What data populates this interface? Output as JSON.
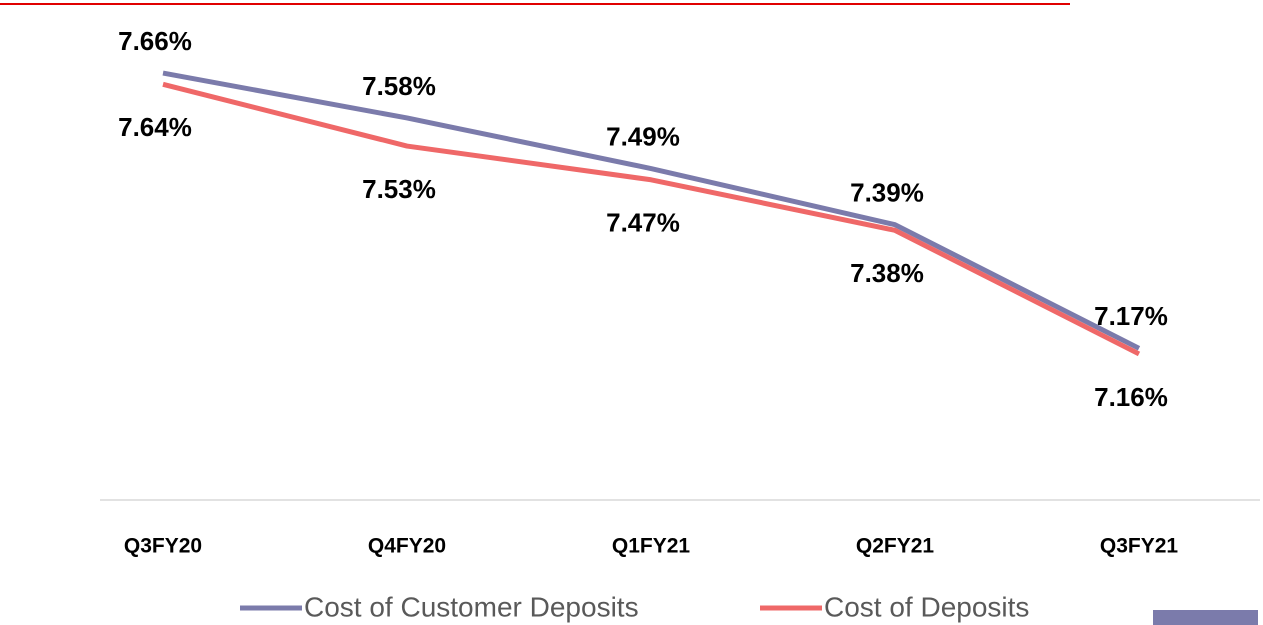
{
  "chart_data": {
    "type": "line",
    "categories": [
      "Q3FY20",
      "Q4FY20",
      "Q1FY21",
      "Q2FY21",
      "Q3FY21"
    ],
    "series": [
      {
        "name": "Cost of Customer Deposits",
        "color": "#7b7bab",
        "values": [
          7.66,
          7.58,
          7.49,
          7.39,
          7.17
        ],
        "value_labels": [
          "7.66%",
          "7.58%",
          "7.49%",
          "7.39%",
          "7.17%"
        ]
      },
      {
        "name": "Cost of Deposits",
        "color": "#ef6868",
        "values": [
          7.64,
          7.53,
          7.47,
          7.38,
          7.16
        ],
        "value_labels": [
          "7.64%",
          "7.53%",
          "7.47%",
          "7.38%",
          "7.16%"
        ]
      }
    ],
    "ylim": [
      6.9,
      7.79
    ],
    "grid": false,
    "legend": "bottom"
  }
}
